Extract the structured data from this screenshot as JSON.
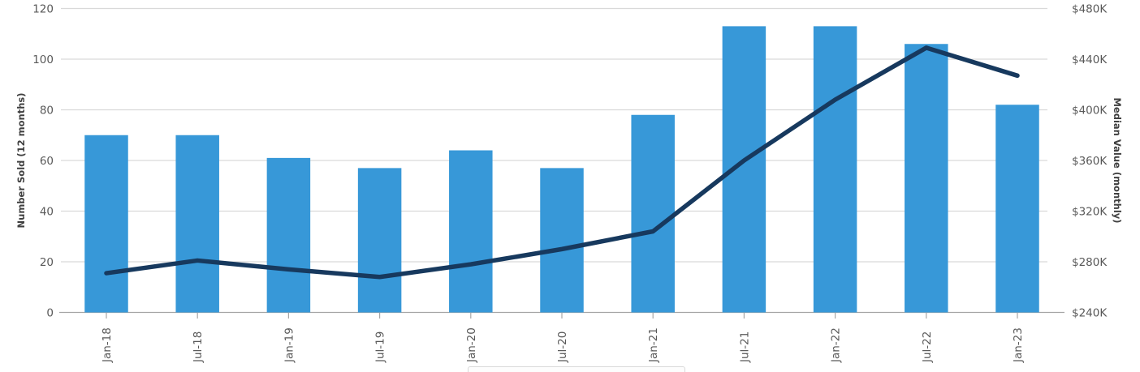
{
  "chart_data": {
    "type": "bar+line combo",
    "title": "",
    "categories": [
      "Jan-18",
      "Jul-18",
      "Jan-19",
      "Jul-19",
      "Jan-20",
      "Jul-20",
      "Jan-21",
      "Jul-21",
      "Jan-22",
      "Jul-22",
      "Jan-23"
    ],
    "series": [
      {
        "name": "Number Sold (12 months)",
        "type": "bar",
        "axis": "left",
        "values": [
          70,
          70,
          61,
          57,
          64,
          57,
          78,
          113,
          113,
          106,
          82
        ]
      },
      {
        "name": "Median Value (monthly)",
        "type": "line",
        "axis": "right",
        "unit": "K USD",
        "values": [
          271,
          281,
          274,
          268,
          278,
          290,
          304,
          360,
          408,
          449,
          427
        ]
      }
    ],
    "left_axis": {
      "title": "Number Sold (12 months)",
      "range": [
        0,
        120
      ],
      "ticks": [
        {
          "value": 120,
          "label": "120"
        },
        {
          "value": 100,
          "label": "100"
        },
        {
          "value": 80,
          "label": "80"
        },
        {
          "value": 60,
          "label": "60"
        },
        {
          "value": 40,
          "label": "40"
        },
        {
          "value": 20,
          "label": "20"
        },
        {
          "value": 0,
          "label": "0"
        }
      ]
    },
    "right_axis": {
      "title": "Median Value (monthly)",
      "range": [
        240,
        480
      ],
      "ticks": [
        {
          "value": 480,
          "label": "$480K"
        },
        {
          "value": 440,
          "label": "$440K"
        },
        {
          "value": 400,
          "label": "$400K"
        },
        {
          "value": 360,
          "label": "$360K"
        },
        {
          "value": 320,
          "label": "$320K"
        },
        {
          "value": 280,
          "label": "$280K"
        },
        {
          "value": 240,
          "label": "$240K"
        }
      ]
    },
    "grid": true,
    "legend": {
      "visible": true,
      "note": "box clipped at bottom edge of image"
    },
    "colors": {
      "bar": "#3798d8",
      "line": "#17395e",
      "gridline": "#d9d9d9",
      "baseline": "#a6a6a6",
      "tick_mark": "#a6a6a6",
      "tick_text": "#595959",
      "axis_title": "#404040",
      "background": "#ffffff"
    }
  }
}
